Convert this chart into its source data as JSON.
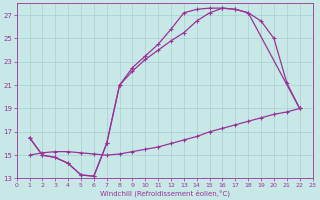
{
  "bg_color": "#c8e8e8",
  "line_color": "#993399",
  "xlabel": "Windchill (Refroidissement éolien,°C)",
  "xlim": [
    0,
    23
  ],
  "ylim": [
    13,
    28
  ],
  "xticks": [
    0,
    1,
    2,
    3,
    4,
    5,
    6,
    7,
    8,
    9,
    10,
    11,
    12,
    13,
    14,
    15,
    16,
    17,
    18,
    19,
    20,
    21,
    22,
    23
  ],
  "yticks": [
    13,
    15,
    17,
    19,
    21,
    23,
    25,
    27
  ],
  "curve1_x": [
    1,
    2,
    3,
    4,
    5,
    6,
    7,
    8,
    9,
    10,
    11,
    12,
    13,
    14,
    15,
    16,
    17,
    18,
    22
  ],
  "curve1_y": [
    16.5,
    15.0,
    14.8,
    14.3,
    13.3,
    13.2,
    16.0,
    21.0,
    22.5,
    23.5,
    24.5,
    25.8,
    27.2,
    27.5,
    27.6,
    27.6,
    27.5,
    27.2,
    19.0
  ],
  "curve2_x": [
    1,
    2,
    3,
    4,
    5,
    6,
    7,
    8,
    9,
    10,
    11,
    12,
    13,
    14,
    15,
    16,
    17,
    18,
    19,
    20,
    21,
    22
  ],
  "curve2_y": [
    16.5,
    15.0,
    14.8,
    14.3,
    13.3,
    13.2,
    16.0,
    21.0,
    22.2,
    23.2,
    24.0,
    24.8,
    25.5,
    26.5,
    27.2,
    27.6,
    27.5,
    27.2,
    26.5,
    25.0,
    21.2,
    19.0
  ],
  "curve3_x": [
    1,
    2,
    3,
    4,
    5,
    6,
    7,
    8,
    9,
    10,
    11,
    12,
    13,
    14,
    15,
    16,
    17,
    18,
    19,
    20,
    21,
    22
  ],
  "curve3_y": [
    15.0,
    15.2,
    15.3,
    15.3,
    15.2,
    15.1,
    15.0,
    15.1,
    15.3,
    15.5,
    15.7,
    16.0,
    16.3,
    16.6,
    17.0,
    17.3,
    17.6,
    17.9,
    18.2,
    18.5,
    18.7,
    19.0
  ]
}
